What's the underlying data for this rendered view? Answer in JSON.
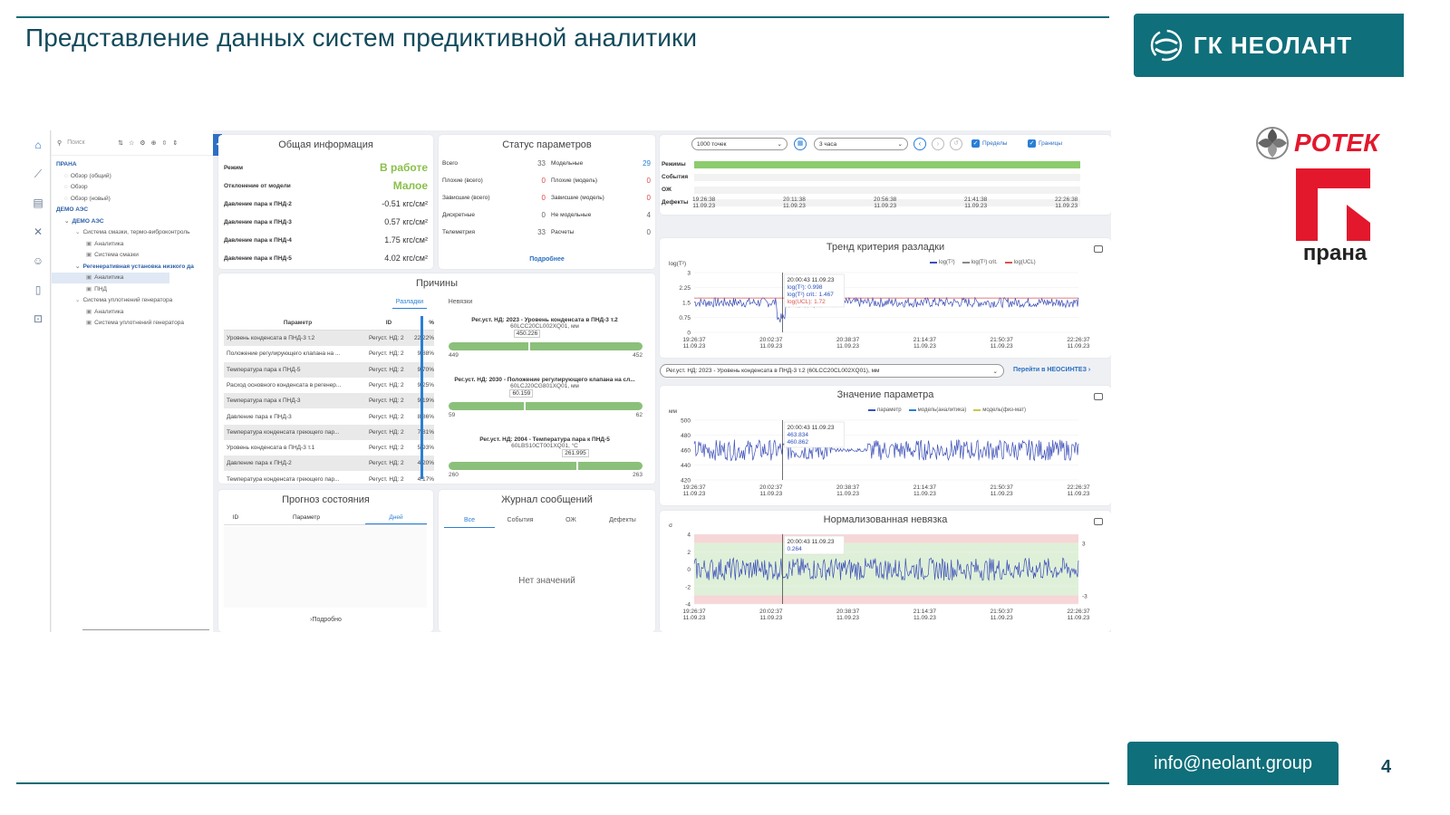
{
  "slide": {
    "title": "Представление данных систем предиктивной аналитики",
    "brand": "ГК НЕОЛАНТ",
    "logo_rotek": "РОТЕК",
    "logo_prana": "прана",
    "email": "info@neolant.group",
    "page_number": "4",
    "colors": {
      "accent": "#0f6f7a",
      "title": "#134a5b",
      "rotek_red": "#e3182d"
    }
  },
  "app": {
    "nav_icons": [
      "home-icon",
      "chart-icon",
      "document-icon",
      "tools-icon",
      "users-icon",
      "book-icon",
      "lock-icon"
    ],
    "tree": {
      "search_placeholder": "Поиск",
      "items": [
        {
          "label": "ПРАНА",
          "depth": 0,
          "bold": true
        },
        {
          "label": "Обзор (общий)",
          "depth": 1
        },
        {
          "label": "Обзор",
          "depth": 1
        },
        {
          "label": "Обзор (новый)",
          "depth": 1
        },
        {
          "label": "ДЕМО АЭС",
          "depth": 0,
          "bold": true
        },
        {
          "label": "ДЕМО АЭС",
          "depth": 1,
          "bold": true
        },
        {
          "label": "Система смазки, термо-виброконтроль",
          "depth": 2
        },
        {
          "label": "Аналитика",
          "depth": 3
        },
        {
          "label": "Система смазки",
          "depth": 3
        },
        {
          "label": "Регенеративная установка низкого да",
          "depth": 2,
          "bold": true
        },
        {
          "label": "Аналитика",
          "depth": 3,
          "selected": true
        },
        {
          "label": "ПНД",
          "depth": 3
        },
        {
          "label": "Система уплотнений генератора",
          "depth": 2
        },
        {
          "label": "Аналитика",
          "depth": 3
        },
        {
          "label": "Система уплотнений генератора",
          "depth": 3
        }
      ]
    },
    "general": {
      "title": "Общая информация",
      "rows": [
        {
          "k": "Режим",
          "v": "В работе",
          "green": true
        },
        {
          "k": "Отклонение от модели",
          "v": "Малое",
          "green": true
        },
        {
          "k": "Давление пара к ПНД-2",
          "v": "-0.51  кгс/см²"
        },
        {
          "k": "Давление пара к ПНД-3",
          "v": "0.57  кгс/см²"
        },
        {
          "k": "Давление пара к ПНД-4",
          "v": "1.75  кгс/см²"
        },
        {
          "k": "Давление пара к ПНД-5",
          "v": "4.02  кгс/см²"
        }
      ]
    },
    "status": {
      "title": "Статус параметров",
      "left": [
        {
          "k": "Всего",
          "v": "33",
          "c": ""
        },
        {
          "k": "Плохие (всего)",
          "v": "0",
          "c": "red"
        },
        {
          "k": "Зависшие (всего)",
          "v": "0",
          "c": "red"
        },
        {
          "k": "Дискретные",
          "v": "0",
          "c": ""
        },
        {
          "k": "Телеметрия",
          "v": "33",
          "c": ""
        }
      ],
      "right": [
        {
          "k": "Модельные",
          "v": "29",
          "c": "blue"
        },
        {
          "k": "Плохие (модель)",
          "v": "0",
          "c": "red"
        },
        {
          "k": "Зависшие (модель)",
          "v": "0",
          "c": "red"
        },
        {
          "k": "Не модельные",
          "v": "4",
          "c": ""
        },
        {
          "k": "Расчеты",
          "v": "0",
          "c": ""
        }
      ],
      "more_link": "Подробнее"
    },
    "reasons": {
      "title": "Причины",
      "tabs": [
        "Разладки",
        "Невязки"
      ],
      "headers": [
        "Параметр",
        "ID",
        "%"
      ],
      "rows": [
        {
          "p": "Уровень конденсата в ПНД-3 т.2",
          "id": "Регуст. НД: 2",
          "pct": "22.22%"
        },
        {
          "p": "Положение регулирующего клапана на ...",
          "id": "Регуст. НД: 2",
          "pct": "9.88%"
        },
        {
          "p": "Температура пара к ПНД-5",
          "id": "Регуст. НД: 2",
          "pct": "9.70%"
        },
        {
          "p": "Расход основного конденсата в регенер...",
          "id": "Регуст. НД: 2",
          "pct": "9.25%"
        },
        {
          "p": "Температура пара к ПНД-3",
          "id": "Регуст. НД: 2",
          "pct": "9.19%"
        },
        {
          "p": "Давление пара к ПНД-3",
          "id": "Регуст. НД: 2",
          "pct": "8.86%"
        },
        {
          "p": "Температура конденсата греющего пар...",
          "id": "Регуст. НД: 2",
          "pct": "7.81%"
        },
        {
          "p": "Уровень конденсата в ПНД-3 т.1",
          "id": "Регуст. НД: 2",
          "pct": "5.93%"
        },
        {
          "p": "Давление пара к ПНД-2",
          "id": "Регуст. НД: 2",
          "pct": "4.20%"
        },
        {
          "p": "Температура конденсата греющего пар...",
          "id": "Регуст. НД: 2",
          "pct": "4.17%"
        }
      ],
      "regs": [
        {
          "t": "Рег.уст. НД: 2023 - Уровень конденсата в ПНД-3 т.2",
          "s": "60LCC20CL002XQ01, мм",
          "val": "450.226",
          "min": "449",
          "max": "452",
          "frac": 0.41
        },
        {
          "t": "Рег.уст. НД: 2030 - Положение регулирующего клапана на сл...",
          "s": "60LCJ20CG801XQ01, мм",
          "val": "60.159",
          "min": "59",
          "max": "62",
          "frac": 0.39
        },
        {
          "t": "Рег.уст. НД: 2004 - Температура пара к ПНД-5",
          "s": "60LBS10CT001XQ01, °C",
          "val": "261.995",
          "min": "260",
          "max": "263",
          "frac": 0.66
        }
      ]
    },
    "forecast": {
      "title": "Прогноз состояния",
      "headers": [
        "ID",
        "Параметр",
        "Дней"
      ],
      "more": "Подробно"
    },
    "journal": {
      "title": "Журнал сообщений",
      "tabs": [
        "Все",
        "События",
        "ОЖ",
        "Дефекты"
      ],
      "empty": "Нет значений"
    },
    "toolbar": {
      "points": "1000 точек",
      "range": "3 часа",
      "limits": "Пределы",
      "bounds": "Границы"
    },
    "timeline": {
      "rows": [
        "Режимы",
        "События",
        "ОЖ",
        "Дефекты"
      ],
      "ticks": [
        {
          "t": "19:26:38",
          "d": "11.09.23"
        },
        {
          "t": "20:11:38",
          "d": "11.09.23"
        },
        {
          "t": "20:56:38",
          "d": "11.09.23"
        },
        {
          "t": "21:41:38",
          "d": "11.09.23"
        },
        {
          "t": "22:26:38",
          "d": "11.09.23"
        }
      ]
    },
    "time_ticks": [
      {
        "t": "19:26:37",
        "d": "11.09.23"
      },
      {
        "t": "20:02:37",
        "d": "11.09.23"
      },
      {
        "t": "20:38:37",
        "d": "11.09.23"
      },
      {
        "t": "21:14:37",
        "d": "11.09.23"
      },
      {
        "t": "21:50:37",
        "d": "11.09.23"
      },
      {
        "t": "22:26:37",
        "d": "11.09.23"
      }
    ],
    "param_select": "Рег.уст. НД: 2023 - Уровень конденсата в ПНД-3 т.2 (60LCC20CL002XQ01), мм",
    "neosintez_link": "Перейти в НЕОСИНТЕЗ"
  },
  "chart_data": [
    {
      "type": "line",
      "title": "Тренд критерия разладки",
      "ylabel": "log(T²)",
      "yticks": [
        "3",
        "2.25",
        "1.5",
        "0.75",
        "0"
      ],
      "ylim": [
        0,
        3
      ],
      "legend": [
        "log(T²)",
        "log(T²) crit.",
        "log(UCL)"
      ],
      "series": [
        {
          "name": "log(T²)",
          "color": "#3b4fb8",
          "level": 1.5,
          "noise": 0.25
        },
        {
          "name": "log(UCL)",
          "color": "#d9534f",
          "level": 1.72
        }
      ],
      "tooltip": {
        "time": "20:00:43 11.09.23",
        "lines": [
          "log(T²): 0.998",
          "log(T²) crit.: 1.467",
          "log(UCL): 1.72"
        ]
      }
    },
    {
      "type": "line",
      "title": "Значение параметра",
      "ylabel": "мм",
      "yticks": [
        "500",
        "480",
        "460",
        "440",
        "420"
      ],
      "ylim": [
        420,
        500
      ],
      "legend": [
        "параметр",
        "модель(аналитика)",
        "модель(физ-мат)"
      ],
      "series": [
        {
          "name": "параметр",
          "color": "#3b4fb8",
          "level": 460,
          "noise": 14
        }
      ],
      "tooltip": {
        "time": "20:00:43 11.09.23",
        "lines": [
          "463.834",
          "460.862"
        ]
      }
    },
    {
      "type": "line",
      "title": "Нормализованная невязка",
      "ylabel": "σ",
      "yticks": [
        "4",
        "2",
        "0",
        "-2",
        "-4"
      ],
      "ylim": [
        -4,
        4
      ],
      "bands": [
        3,
        -3
      ],
      "series": [
        {
          "name": "невязка",
          "color": "#3b4fb8",
          "level": 0,
          "noise": 1.3
        }
      ],
      "tooltip": {
        "time": "20:00:43 11.09.23",
        "lines": [
          "0.264"
        ]
      }
    }
  ]
}
